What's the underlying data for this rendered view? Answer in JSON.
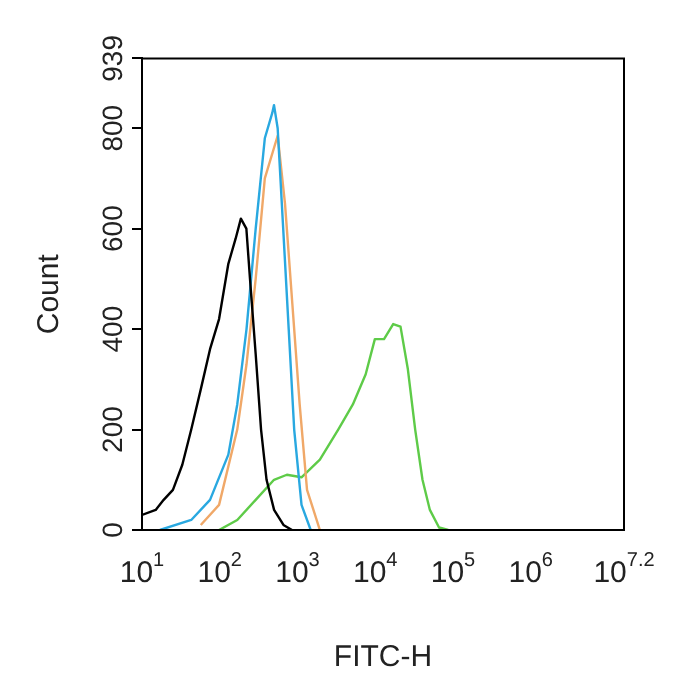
{
  "chart_data": {
    "type": "line",
    "xlabel": "FITC-H",
    "ylabel": "Count",
    "log": "x",
    "grid": false,
    "legend": false,
    "marker": "none",
    "line_style": "solid",
    "xlim": [
      10,
      15848932
    ],
    "ylim": [
      0,
      939
    ],
    "xticks": [
      {
        "value": 10,
        "label": "10$^{1}$"
      },
      {
        "value": 100,
        "label": "10$^{2}$"
      },
      {
        "value": 1000,
        "label": "10$^{3}$"
      },
      {
        "value": 10000,
        "label": "10$^{4}$"
      },
      {
        "value": 100000,
        "label": "10$^{5}$"
      },
      {
        "value": 1000000,
        "label": "10$^{6}$"
      },
      {
        "value": 15848932,
        "label": "10$^{7.2}$"
      }
    ],
    "yticks": [
      0,
      200,
      400,
      600,
      800,
      939
    ],
    "series": [
      {
        "color": "#000000",
        "x": [
          10,
          15,
          19,
          25,
          33,
          43,
          57,
          75,
          98,
          129,
          160,
          187,
          220,
          245,
          290,
          340,
          400,
          500,
          660,
          850
        ],
        "values": [
          30,
          40,
          60,
          80,
          130,
          200,
          280,
          360,
          420,
          530,
          580,
          620,
          600,
          500,
          350,
          200,
          100,
          40,
          10,
          0
        ]
      },
      {
        "color": "#29a8e0",
        "x": [
          17,
          43,
          75,
          129,
          168,
          221,
          290,
          380,
          473,
          499,
          556,
          655,
          771,
          907,
          1127,
          1479
        ],
        "values": [
          0,
          20,
          60,
          150,
          250,
          400,
          600,
          780,
          830,
          846,
          800,
          600,
          400,
          200,
          50,
          0
        ]
      },
      {
        "color": "#f0a868",
        "x": [
          57,
          98,
          168,
          221,
          290,
          380,
          556,
          691,
          859,
          1067,
          1327,
          1941
        ],
        "values": [
          10,
          50,
          200,
          330,
          500,
          700,
          785,
          650,
          450,
          250,
          80,
          0
        ]
      },
      {
        "color": "#5ecb48",
        "x": [
          98,
          168,
          290,
          499,
          730,
          1127,
          1941,
          3342,
          5156,
          7540,
          9890,
          12980,
          17020,
          21150,
          26300,
          32660,
          40550,
          50470,
          66200,
          86900
        ],
        "values": [
          0,
          20,
          60,
          100,
          110,
          105,
          140,
          200,
          250,
          310,
          380,
          380,
          410,
          405,
          320,
          200,
          100,
          40,
          5,
          0
        ]
      }
    ]
  }
}
